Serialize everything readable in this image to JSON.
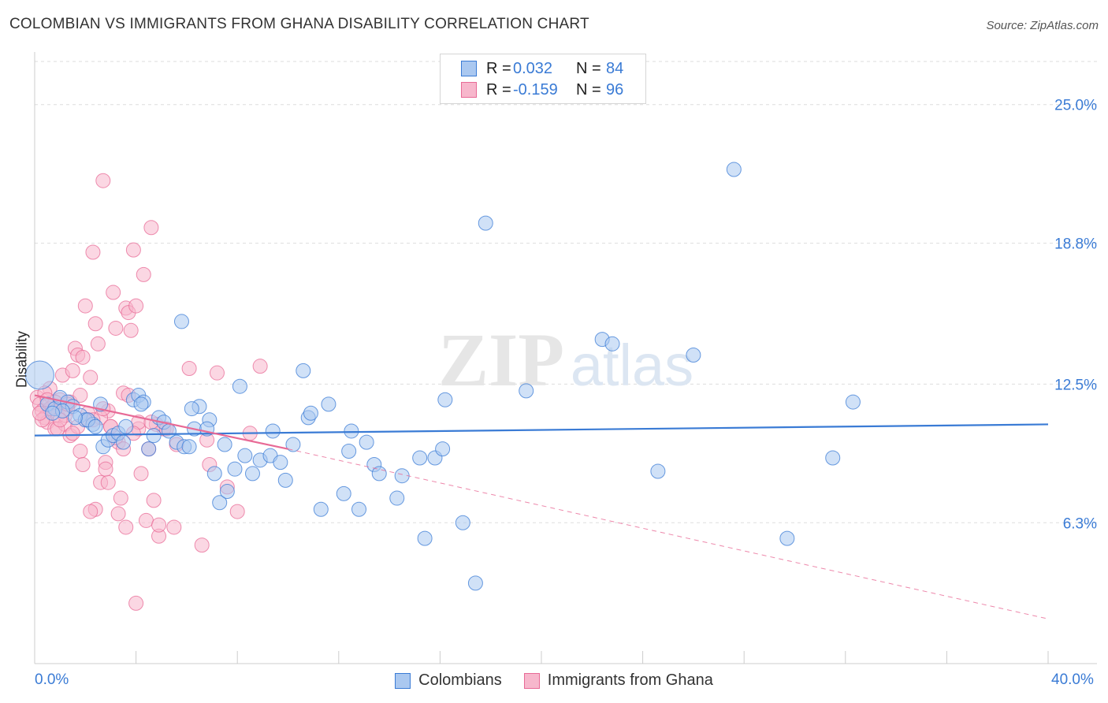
{
  "title": "COLOMBIAN VS IMMIGRANTS FROM GHANA DISABILITY CORRELATION CHART",
  "source": "Source: ZipAtlas.com",
  "watermark": {
    "zip": "ZIP",
    "atlas": "atlas"
  },
  "legend": {
    "rows": [
      {
        "r_label": "R =",
        "r_value": "0.032",
        "n_label": "N =",
        "n_value": "84"
      },
      {
        "r_label": "R =",
        "r_value": "-0.159",
        "n_label": "N =",
        "n_value": "96"
      }
    ]
  },
  "colors": {
    "blue": "#3a7bd5",
    "blue_fill": "#aac8f0",
    "pink": "#e86a96",
    "pink_fill": "#f7b7cc",
    "grid": "#dddddd",
    "tick_text": "#3a7bd5"
  },
  "chart_data": {
    "type": "scatter",
    "title": "COLOMBIAN VS IMMIGRANTS FROM GHANA DISABILITY CORRELATION CHART",
    "xlabel": "",
    "ylabel": "Disability",
    "xlim": [
      0,
      40
    ],
    "ylim": [
      0,
      27
    ],
    "x_tick_labels": [
      "0.0%",
      "40.0%"
    ],
    "y_ticks": [
      6.3,
      12.5,
      18.8,
      25.0
    ],
    "y_tick_labels": [
      "6.3%",
      "12.5%",
      "18.8%",
      "25.0%"
    ],
    "legend": [
      "Colombians",
      "Immigrants from Ghana"
    ],
    "series": [
      {
        "name": "Colombians",
        "r": 0.032,
        "n": 84,
        "trend": {
          "x": [
            0,
            40
          ],
          "y": [
            10.2,
            10.7
          ],
          "dashed_to": null
        },
        "points": [
          [
            0.2,
            12.9
          ],
          [
            0.5,
            11.6
          ],
          [
            0.8,
            11.4
          ],
          [
            1.0,
            11.9
          ],
          [
            1.3,
            11.7
          ],
          [
            1.5,
            11.5
          ],
          [
            1.8,
            11.1
          ],
          [
            2.0,
            10.9
          ],
          [
            2.3,
            10.7
          ],
          [
            2.6,
            11.6
          ],
          [
            2.7,
            9.7
          ],
          [
            2.9,
            10.0
          ],
          [
            3.1,
            10.2
          ],
          [
            3.3,
            10.3
          ],
          [
            3.5,
            9.9
          ],
          [
            3.9,
            11.8
          ],
          [
            4.1,
            12.0
          ],
          [
            4.3,
            11.7
          ],
          [
            4.5,
            9.6
          ],
          [
            4.7,
            10.2
          ],
          [
            4.9,
            11.0
          ],
          [
            5.1,
            10.8
          ],
          [
            5.3,
            10.4
          ],
          [
            5.6,
            9.9
          ],
          [
            5.9,
            9.7
          ],
          [
            6.1,
            9.7
          ],
          [
            6.3,
            10.5
          ],
          [
            6.5,
            11.5
          ],
          [
            6.9,
            10.9
          ],
          [
            7.1,
            8.5
          ],
          [
            7.3,
            7.2
          ],
          [
            7.6,
            7.7
          ],
          [
            7.9,
            8.7
          ],
          [
            8.3,
            9.3
          ],
          [
            8.6,
            8.5
          ],
          [
            8.9,
            9.1
          ],
          [
            9.3,
            9.3
          ],
          [
            9.7,
            9.0
          ],
          [
            9.9,
            8.2
          ],
          [
            10.2,
            9.8
          ],
          [
            10.6,
            13.1
          ],
          [
            10.8,
            11.0
          ],
          [
            11.3,
            6.9
          ],
          [
            11.6,
            11.6
          ],
          [
            12.2,
            7.6
          ],
          [
            12.5,
            10.4
          ],
          [
            12.8,
            6.9
          ],
          [
            13.1,
            9.9
          ],
          [
            13.4,
            8.9
          ],
          [
            13.6,
            8.5
          ],
          [
            14.3,
            7.4
          ],
          [
            14.5,
            8.4
          ],
          [
            15.2,
            9.2
          ],
          [
            15.4,
            5.6
          ],
          [
            15.8,
            9.2
          ],
          [
            16.1,
            9.6
          ],
          [
            16.2,
            11.8
          ],
          [
            16.9,
            6.3
          ],
          [
            17.4,
            3.6
          ],
          [
            17.8,
            19.7
          ],
          [
            19.4,
            12.2
          ],
          [
            22.4,
            14.5
          ],
          [
            22.8,
            14.3
          ],
          [
            24.6,
            8.6
          ],
          [
            26.0,
            13.8
          ],
          [
            27.6,
            22.1
          ],
          [
            29.7,
            5.6
          ],
          [
            31.5,
            9.2
          ],
          [
            32.3,
            11.7
          ],
          [
            4.2,
            11.6
          ],
          [
            2.1,
            10.9
          ],
          [
            1.1,
            11.3
          ],
          [
            6.8,
            10.5
          ],
          [
            7.5,
            9.8
          ],
          [
            8.1,
            12.4
          ],
          [
            9.4,
            10.4
          ],
          [
            10.9,
            11.2
          ],
          [
            12.4,
            9.5
          ],
          [
            3.6,
            10.6
          ],
          [
            5.8,
            15.3
          ],
          [
            0.7,
            11.2
          ],
          [
            1.6,
            11.0
          ],
          [
            2.4,
            10.6
          ],
          [
            6.2,
            11.4
          ]
        ]
      },
      {
        "name": "Immigrants from Ghana",
        "r": -0.159,
        "n": 96,
        "trend": {
          "x": [
            0,
            10
          ],
          "y": [
            12.0,
            9.6
          ],
          "dashed_to": [
            40,
            2.0
          ]
        },
        "points": [
          [
            0.1,
            11.9
          ],
          [
            0.2,
            11.6
          ],
          [
            0.3,
            11.3
          ],
          [
            0.4,
            11.0
          ],
          [
            0.5,
            10.8
          ],
          [
            0.6,
            12.3
          ],
          [
            0.7,
            11.5
          ],
          [
            0.8,
            10.5
          ],
          [
            0.9,
            11.1
          ],
          [
            1.0,
            11.8
          ],
          [
            1.1,
            12.9
          ],
          [
            1.2,
            10.7
          ],
          [
            1.3,
            11.4
          ],
          [
            1.4,
            10.2
          ],
          [
            1.5,
            13.1
          ],
          [
            1.6,
            14.1
          ],
          [
            1.7,
            13.8
          ],
          [
            1.8,
            9.5
          ],
          [
            1.9,
            8.9
          ],
          [
            2.0,
            16.0
          ],
          [
            2.1,
            11.2
          ],
          [
            2.2,
            12.8
          ],
          [
            2.3,
            18.4
          ],
          [
            2.4,
            15.2
          ],
          [
            2.5,
            14.3
          ],
          [
            2.6,
            8.1
          ],
          [
            2.7,
            21.6
          ],
          [
            2.8,
            9.0
          ],
          [
            2.9,
            11.3
          ],
          [
            3.0,
            10.6
          ],
          [
            3.1,
            16.6
          ],
          [
            3.2,
            15.0
          ],
          [
            3.3,
            9.9
          ],
          [
            3.4,
            7.4
          ],
          [
            3.5,
            12.1
          ],
          [
            3.6,
            15.9
          ],
          [
            3.7,
            15.7
          ],
          [
            3.8,
            14.9
          ],
          [
            3.9,
            18.5
          ],
          [
            4.0,
            16.0
          ],
          [
            4.1,
            10.5
          ],
          [
            4.2,
            8.5
          ],
          [
            4.3,
            17.4
          ],
          [
            4.4,
            6.4
          ],
          [
            4.5,
            9.6
          ],
          [
            4.6,
            19.5
          ],
          [
            4.7,
            7.3
          ],
          [
            4.9,
            5.7
          ],
          [
            5.1,
            10.5
          ],
          [
            5.5,
            6.1
          ],
          [
            6.1,
            13.2
          ],
          [
            6.6,
            5.3
          ],
          [
            6.9,
            8.9
          ],
          [
            7.2,
            13.0
          ],
          [
            7.6,
            7.9
          ],
          [
            8.0,
            6.8
          ],
          [
            8.5,
            10.3
          ],
          [
            8.9,
            13.3
          ],
          [
            3.3,
            6.7
          ],
          [
            2.4,
            6.9
          ],
          [
            2.9,
            8.1
          ],
          [
            1.7,
            10.6
          ],
          [
            0.4,
            12.1
          ],
          [
            0.9,
            10.5
          ],
          [
            1.4,
            11.7
          ],
          [
            2.1,
            10.9
          ],
          [
            3.6,
            6.1
          ],
          [
            4.1,
            10.8
          ],
          [
            4.9,
            6.2
          ],
          [
            5.6,
            9.8
          ],
          [
            3.2,
            10.1
          ],
          [
            2.6,
            11.0
          ],
          [
            1.2,
            11.1
          ],
          [
            0.6,
            11.4
          ],
          [
            0.3,
            10.9
          ],
          [
            1.8,
            12.0
          ],
          [
            3.9,
            10.3
          ],
          [
            4.8,
            10.7
          ],
          [
            2.2,
            6.8
          ],
          [
            4.0,
            2.7
          ],
          [
            3.5,
            9.6
          ],
          [
            1.5,
            10.3
          ],
          [
            2.7,
            11.4
          ],
          [
            0.8,
            11.7
          ],
          [
            3.0,
            10.6
          ],
          [
            1.9,
            13.7
          ],
          [
            2.3,
            10.9
          ],
          [
            4.6,
            10.8
          ],
          [
            5.2,
            10.5
          ],
          [
            6.8,
            10.0
          ],
          [
            0.5,
            11.8
          ],
          [
            1.0,
            10.9
          ],
          [
            2.8,
            8.7
          ],
          [
            3.7,
            12.0
          ],
          [
            0.2,
            11.2
          ],
          [
            1.3,
            11.6
          ]
        ]
      }
    ]
  }
}
